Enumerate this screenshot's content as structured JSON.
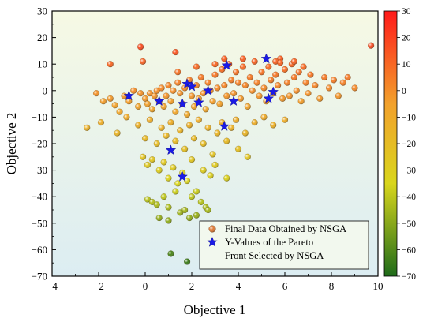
{
  "chart_data": {
    "type": "scatter",
    "title": "",
    "xlabel": "Objective 1",
    "ylabel": "Objective 2",
    "xlim": [
      -4,
      10
    ],
    "ylim": [
      -70,
      30
    ],
    "xticks": [
      -4,
      -2,
      0,
      2,
      4,
      6,
      8,
      10
    ],
    "yticks": [
      -70,
      -60,
      -50,
      -40,
      -30,
      -20,
      -10,
      0,
      10,
      20,
      30
    ],
    "colorbar": {
      "range": [
        -70,
        30
      ],
      "ticks": [
        30,
        20,
        10,
        0,
        -10,
        -20,
        -30,
        -40,
        -50,
        -60,
        -70
      ],
      "colors": [
        "#1e6b1a",
        "#d9d61c",
        "#f2a12c",
        "#ff1a1a"
      ]
    },
    "legend": {
      "position": "bottom-right",
      "entries": [
        "Final Data Obtained by NSGA",
        "Y-Values of the Pareto",
        "Front Selected by NSGA"
      ]
    },
    "grid": false,
    "series": [
      {
        "name": "Final Data Obtained by NSGA",
        "marker": "sphere",
        "points": [
          [
            -2.1,
            -1
          ],
          [
            -1.8,
            -4
          ],
          [
            -1.5,
            -3
          ],
          [
            -1.3,
            -5.5
          ],
          [
            -1.1,
            -8
          ],
          [
            -0.9,
            -2
          ],
          [
            -0.7,
            -4
          ],
          [
            -0.5,
            0
          ],
          [
            -0.3,
            -6
          ],
          [
            -0.2,
            -1
          ],
          [
            0.0,
            -3
          ],
          [
            0.1,
            -5
          ],
          [
            0.2,
            -1
          ],
          [
            0.3,
            -7
          ],
          [
            0.4,
            -2
          ],
          [
            0.5,
            0
          ],
          [
            0.6,
            -4
          ],
          [
            0.7,
            1
          ],
          [
            0.8,
            -6
          ],
          [
            0.9,
            -2
          ],
          [
            1.0,
            2
          ],
          [
            1.1,
            -4
          ],
          [
            1.2,
            0
          ],
          [
            1.3,
            -8
          ],
          [
            1.4,
            3
          ],
          [
            1.5,
            -1
          ],
          [
            1.6,
            -5
          ],
          [
            1.7,
            1
          ],
          [
            1.8,
            -9
          ],
          [
            1.9,
            4
          ],
          [
            2.0,
            -2
          ],
          [
            2.1,
            -6
          ],
          [
            2.2,
            2
          ],
          [
            2.3,
            -3
          ],
          [
            2.4,
            5
          ],
          [
            2.5,
            -1
          ],
          [
            2.6,
            -7
          ],
          [
            2.7,
            3
          ],
          [
            2.8,
            0
          ],
          [
            2.9,
            -4
          ],
          [
            3.0,
            6
          ],
          [
            3.1,
            1
          ],
          [
            3.2,
            -5
          ],
          [
            3.3,
            8
          ],
          [
            3.4,
            2
          ],
          [
            3.5,
            -2
          ],
          [
            3.6,
            10
          ],
          [
            3.7,
            4
          ],
          [
            3.8,
            -1
          ],
          [
            3.9,
            7
          ],
          [
            4.0,
            3
          ],
          [
            4.1,
            -3
          ],
          [
            4.2,
            9
          ],
          [
            4.3,
            2
          ],
          [
            4.4,
            -6
          ],
          [
            4.5,
            5
          ],
          [
            4.6,
            0
          ],
          [
            4.7,
            11
          ],
          [
            4.8,
            3
          ],
          [
            4.9,
            -2
          ],
          [
            5.0,
            7
          ],
          [
            5.1,
            1
          ],
          [
            5.2,
            -4
          ],
          [
            5.3,
            9
          ],
          [
            5.4,
            4
          ],
          [
            5.5,
            -1
          ],
          [
            5.6,
            6
          ],
          [
            5.7,
            2
          ],
          [
            5.8,
            12
          ],
          [
            5.9,
            -3
          ],
          [
            6.0,
            8
          ],
          [
            6.1,
            3
          ],
          [
            6.2,
            -2
          ],
          [
            6.3,
            10
          ],
          [
            6.4,
            5
          ],
          [
            6.5,
            0
          ],
          [
            6.6,
            7
          ],
          [
            6.7,
            -4
          ],
          [
            6.8,
            9
          ],
          [
            6.9,
            3
          ],
          [
            7.0,
            -1
          ],
          [
            7.1,
            6
          ],
          [
            7.3,
            2
          ],
          [
            7.5,
            -3
          ],
          [
            7.7,
            5
          ],
          [
            7.9,
            1
          ],
          [
            8.1,
            4
          ],
          [
            8.3,
            -2
          ],
          [
            8.5,
            3
          ],
          [
            8.7,
            5
          ],
          [
            9.0,
            1
          ],
          [
            9.7,
            17
          ],
          [
            -1.5,
            10
          ],
          [
            -0.2,
            16.5
          ],
          [
            -0.1,
            11
          ],
          [
            1.3,
            14.5
          ],
          [
            1.4,
            7
          ],
          [
            2.2,
            9
          ],
          [
            3.0,
            10
          ],
          [
            3.4,
            12
          ],
          [
            4.2,
            12
          ],
          [
            5.6,
            11
          ],
          [
            5.8,
            10.5
          ],
          [
            6.4,
            11
          ],
          [
            -2.5,
            -14
          ],
          [
            -1.9,
            -12
          ],
          [
            -1.2,
            -16
          ],
          [
            -0.8,
            -10
          ],
          [
            -0.3,
            -13
          ],
          [
            0.0,
            -18
          ],
          [
            0.2,
            -11
          ],
          [
            0.5,
            -20
          ],
          [
            0.7,
            -14
          ],
          [
            0.9,
            -17
          ],
          [
            1.1,
            -12
          ],
          [
            1.3,
            -19
          ],
          [
            1.5,
            -15
          ],
          [
            1.7,
            -22
          ],
          [
            1.9,
            -13
          ],
          [
            2.1,
            -18
          ],
          [
            2.3,
            -11
          ],
          [
            2.5,
            -20
          ],
          [
            2.7,
            -14
          ],
          [
            2.9,
            -24
          ],
          [
            3.1,
            -16
          ],
          [
            3.3,
            -12
          ],
          [
            3.5,
            -19
          ],
          [
            3.7,
            -14
          ],
          [
            3.9,
            -11
          ],
          [
            4.3,
            -16
          ],
          [
            4.7,
            -12
          ],
          [
            5.1,
            -10
          ],
          [
            5.5,
            -13
          ],
          [
            6.0,
            -11
          ],
          [
            -0.1,
            -25
          ],
          [
            0.1,
            -28
          ],
          [
            0.3,
            -26
          ],
          [
            0.6,
            -30
          ],
          [
            0.8,
            -27
          ],
          [
            1.0,
            -33
          ],
          [
            1.2,
            -29
          ],
          [
            1.4,
            -35
          ],
          [
            1.6,
            -31
          ],
          [
            1.8,
            -34
          ],
          [
            2.0,
            -26
          ],
          [
            2.2,
            -38
          ],
          [
            2.5,
            -30
          ],
          [
            2.8,
            -32
          ],
          [
            3.0,
            -28
          ],
          [
            3.5,
            -33
          ],
          [
            4.0,
            -22
          ],
          [
            4.4,
            -25
          ],
          [
            0.1,
            -41
          ],
          [
            0.3,
            -42
          ],
          [
            0.5,
            -43
          ],
          [
            0.8,
            -40
          ],
          [
            1.0,
            -44
          ],
          [
            1.3,
            -38
          ],
          [
            1.7,
            -45
          ],
          [
            2.0,
            -40
          ],
          [
            2.4,
            -42
          ],
          [
            2.6,
            -44
          ],
          [
            0.6,
            -48
          ],
          [
            1.0,
            -49
          ],
          [
            1.5,
            -46
          ],
          [
            1.9,
            -48
          ],
          [
            2.2,
            -47
          ],
          [
            2.7,
            -45
          ],
          [
            1.1,
            -61.5
          ],
          [
            1.8,
            -64.5
          ]
        ]
      },
      {
        "name": "Y-Values of the Pareto Front Selected by NSGA",
        "marker": "star",
        "points": [
          [
            -0.7,
            -2
          ],
          [
            0.6,
            -4
          ],
          [
            1.6,
            -5
          ],
          [
            1.8,
            2.5
          ],
          [
            2.0,
            1.5
          ],
          [
            2.3,
            -4.5
          ],
          [
            2.7,
            0
          ],
          [
            3.5,
            9.5
          ],
          [
            3.8,
            -4
          ],
          [
            5.2,
            12
          ],
          [
            5.3,
            -3
          ],
          [
            5.5,
            -0.5
          ],
          [
            3.4,
            -13.5
          ],
          [
            1.1,
            -22.5
          ],
          [
            1.6,
            -32.5
          ]
        ]
      }
    ]
  }
}
